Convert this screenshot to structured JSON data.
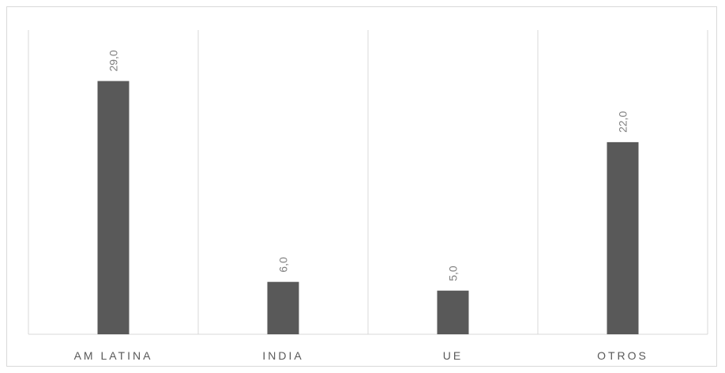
{
  "chart_data": {
    "type": "bar",
    "categories": [
      "AM LATINA",
      "INDIA",
      "UE",
      "OTROS"
    ],
    "values": [
      29.0,
      6.0,
      5.0,
      22.0
    ],
    "value_labels": [
      "29,0",
      "6,0",
      "5,0",
      "22,0"
    ],
    "title": "",
    "xlabel": "",
    "ylabel": "",
    "ylim": [
      0,
      29
    ],
    "grid": "vertical category separators",
    "legend": "none",
    "colors": {
      "bar": "#595959",
      "grid": "#d9d9d9",
      "axis_text": "#595959",
      "data_label_text": "#7f7f7f"
    }
  }
}
